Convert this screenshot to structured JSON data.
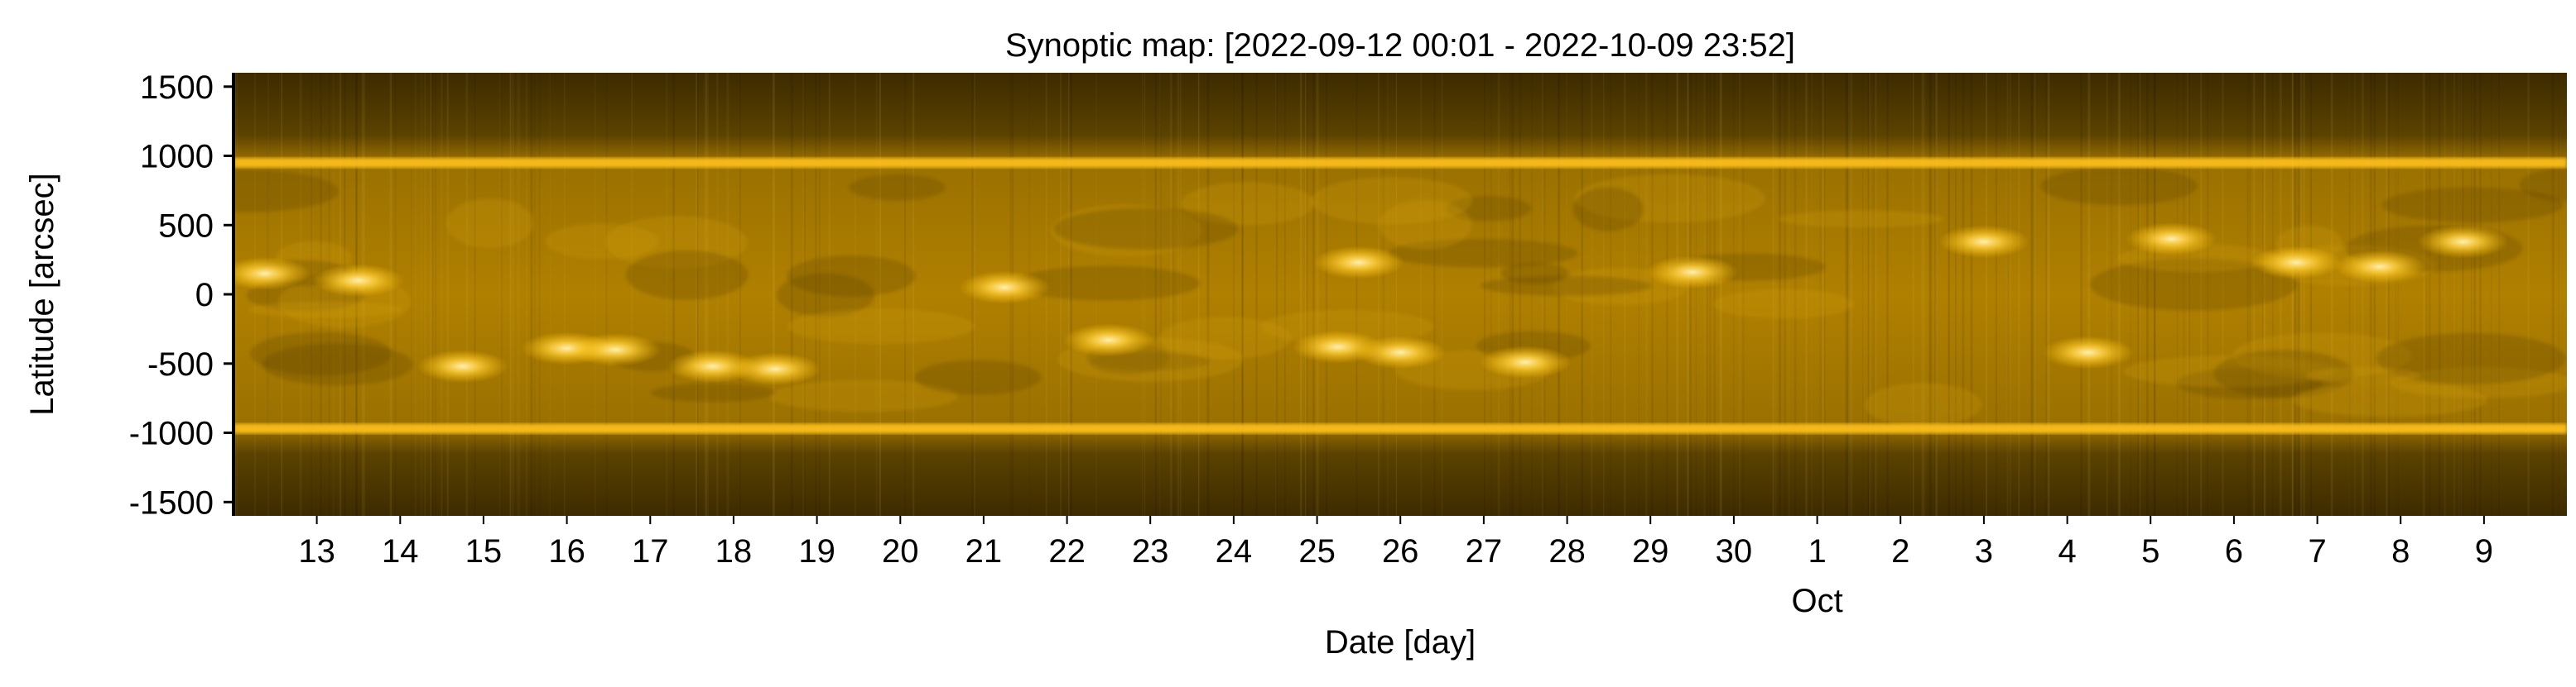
{
  "chart_data": {
    "type": "heatmap",
    "title": "Synoptic map: [2022-09-12 00:01 - 2022-10-09 23:52]",
    "xlabel": "Date [day]",
    "ylabel": "Latitude [arcsec]",
    "x_range": [
      "2022-09-12 00:01",
      "2022-10-09 23:52"
    ],
    "ylim": [
      -1600,
      1600
    ],
    "y_ticks": [
      1500,
      1000,
      500,
      0,
      -500,
      -1000,
      -1500
    ],
    "y_tick_labels": [
      "1500",
      "1000",
      "500",
      "0",
      "-500",
      "-1000",
      "-1500"
    ],
    "x_ticks": [
      {
        "date": "2022-09-13",
        "label": "13"
      },
      {
        "date": "2022-09-14",
        "label": "14"
      },
      {
        "date": "2022-09-15",
        "label": "15"
      },
      {
        "date": "2022-09-16",
        "label": "16"
      },
      {
        "date": "2022-09-17",
        "label": "17"
      },
      {
        "date": "2022-09-18",
        "label": "18"
      },
      {
        "date": "2022-09-19",
        "label": "19"
      },
      {
        "date": "2022-09-20",
        "label": "20"
      },
      {
        "date": "2022-09-21",
        "label": "21"
      },
      {
        "date": "2022-09-22",
        "label": "22"
      },
      {
        "date": "2022-09-23",
        "label": "23"
      },
      {
        "date": "2022-09-24",
        "label": "24"
      },
      {
        "date": "2022-09-25",
        "label": "25"
      },
      {
        "date": "2022-09-26",
        "label": "26"
      },
      {
        "date": "2022-09-27",
        "label": "27"
      },
      {
        "date": "2022-09-28",
        "label": "28"
      },
      {
        "date": "2022-09-29",
        "label": "29"
      },
      {
        "date": "2022-09-30",
        "label": "30"
      },
      {
        "date": "2022-10-01",
        "label": "1"
      },
      {
        "date": "2022-10-02",
        "label": "2"
      },
      {
        "date": "2022-10-03",
        "label": "3"
      },
      {
        "date": "2022-10-04",
        "label": "4"
      },
      {
        "date": "2022-10-05",
        "label": "5"
      },
      {
        "date": "2022-10-06",
        "label": "6"
      },
      {
        "date": "2022-10-07",
        "label": "7"
      },
      {
        "date": "2022-10-08",
        "label": "8"
      },
      {
        "date": "2022-10-09",
        "label": "9"
      }
    ],
    "month_label": {
      "date": "2022-10-01",
      "label": "Oct"
    },
    "limb_latitudes": [
      950,
      -970
    ],
    "active_regions": [
      {
        "date": "2022-09-12 09:00",
        "lat": 150
      },
      {
        "date": "2022-09-13 12:00",
        "lat": 100
      },
      {
        "date": "2022-09-14 18:00",
        "lat": -520
      },
      {
        "date": "2022-09-16 00:00",
        "lat": -390
      },
      {
        "date": "2022-09-16 14:00",
        "lat": -400
      },
      {
        "date": "2022-09-17 18:00",
        "lat": -520
      },
      {
        "date": "2022-09-18 12:00",
        "lat": -540
      },
      {
        "date": "2022-09-21 06:00",
        "lat": 50
      },
      {
        "date": "2022-09-22 12:00",
        "lat": -330
      },
      {
        "date": "2022-09-25 06:00",
        "lat": -380
      },
      {
        "date": "2022-09-26 00:00",
        "lat": -420
      },
      {
        "date": "2022-09-27 12:00",
        "lat": -490
      },
      {
        "date": "2022-09-25 12:00",
        "lat": 230
      },
      {
        "date": "2022-09-29 12:00",
        "lat": 160
      },
      {
        "date": "2022-10-03 00:00",
        "lat": 380
      },
      {
        "date": "2022-10-04 06:00",
        "lat": -420
      },
      {
        "date": "2022-10-05 06:00",
        "lat": 400
      },
      {
        "date": "2022-10-06 18:00",
        "lat": 230
      },
      {
        "date": "2022-10-07 18:00",
        "lat": 200
      },
      {
        "date": "2022-10-08 18:00",
        "lat": 380
      }
    ],
    "colormap": {
      "dark": "#3a2800",
      "mid": "#a87a00",
      "bright": "#ffd75a",
      "limb": "#ffc21a"
    }
  }
}
